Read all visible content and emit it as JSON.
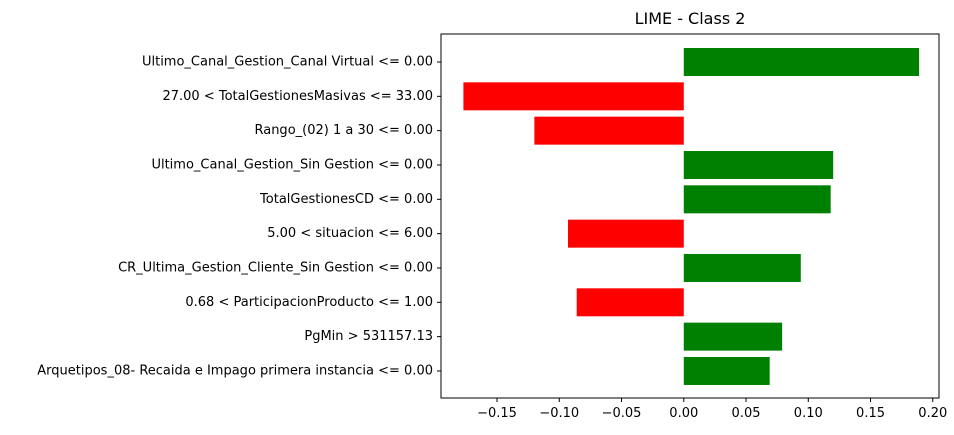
{
  "chart_data": {
    "type": "bar",
    "orientation": "horizontal",
    "title": "LIME - Class 2",
    "xlabel": "",
    "ylabel": "",
    "grid": false,
    "legend": "none",
    "xlim": [
      -0.195,
      0.205
    ],
    "xticks": [
      -0.15,
      -0.1,
      -0.05,
      0.0,
      0.05,
      0.1,
      0.15,
      0.2
    ],
    "xtick_labels": [
      "−0.15",
      "−0.10",
      "−0.05",
      "0.00",
      "0.05",
      "0.10",
      "0.15",
      "0.20"
    ],
    "colors": {
      "positive": "#008000",
      "negative": "#ff0000"
    },
    "categories": [
      "Ultimo_Canal_Gestion_Canal Virtual <= 0.00",
      "27.00 < TotalGestionesMasivas <= 33.00",
      "Rango_(02) 1 a 30 <= 0.00",
      "Ultimo_Canal_Gestion_Sin Gestion <= 0.00",
      "TotalGestionesCD <= 0.00",
      "5.00 < situacion <= 6.00",
      "CR_Ultima_Gestion_Cliente_Sin Gestion <= 0.00",
      "0.68 < ParticipacionProducto <= 1.00",
      "PgMin > 531157.13",
      "Arquetipos_08- Recaida e Impago primera instancia <= 0.00"
    ],
    "values": [
      0.189,
      -0.177,
      -0.12,
      0.12,
      0.118,
      -0.093,
      0.094,
      -0.086,
      0.079,
      0.069
    ]
  }
}
